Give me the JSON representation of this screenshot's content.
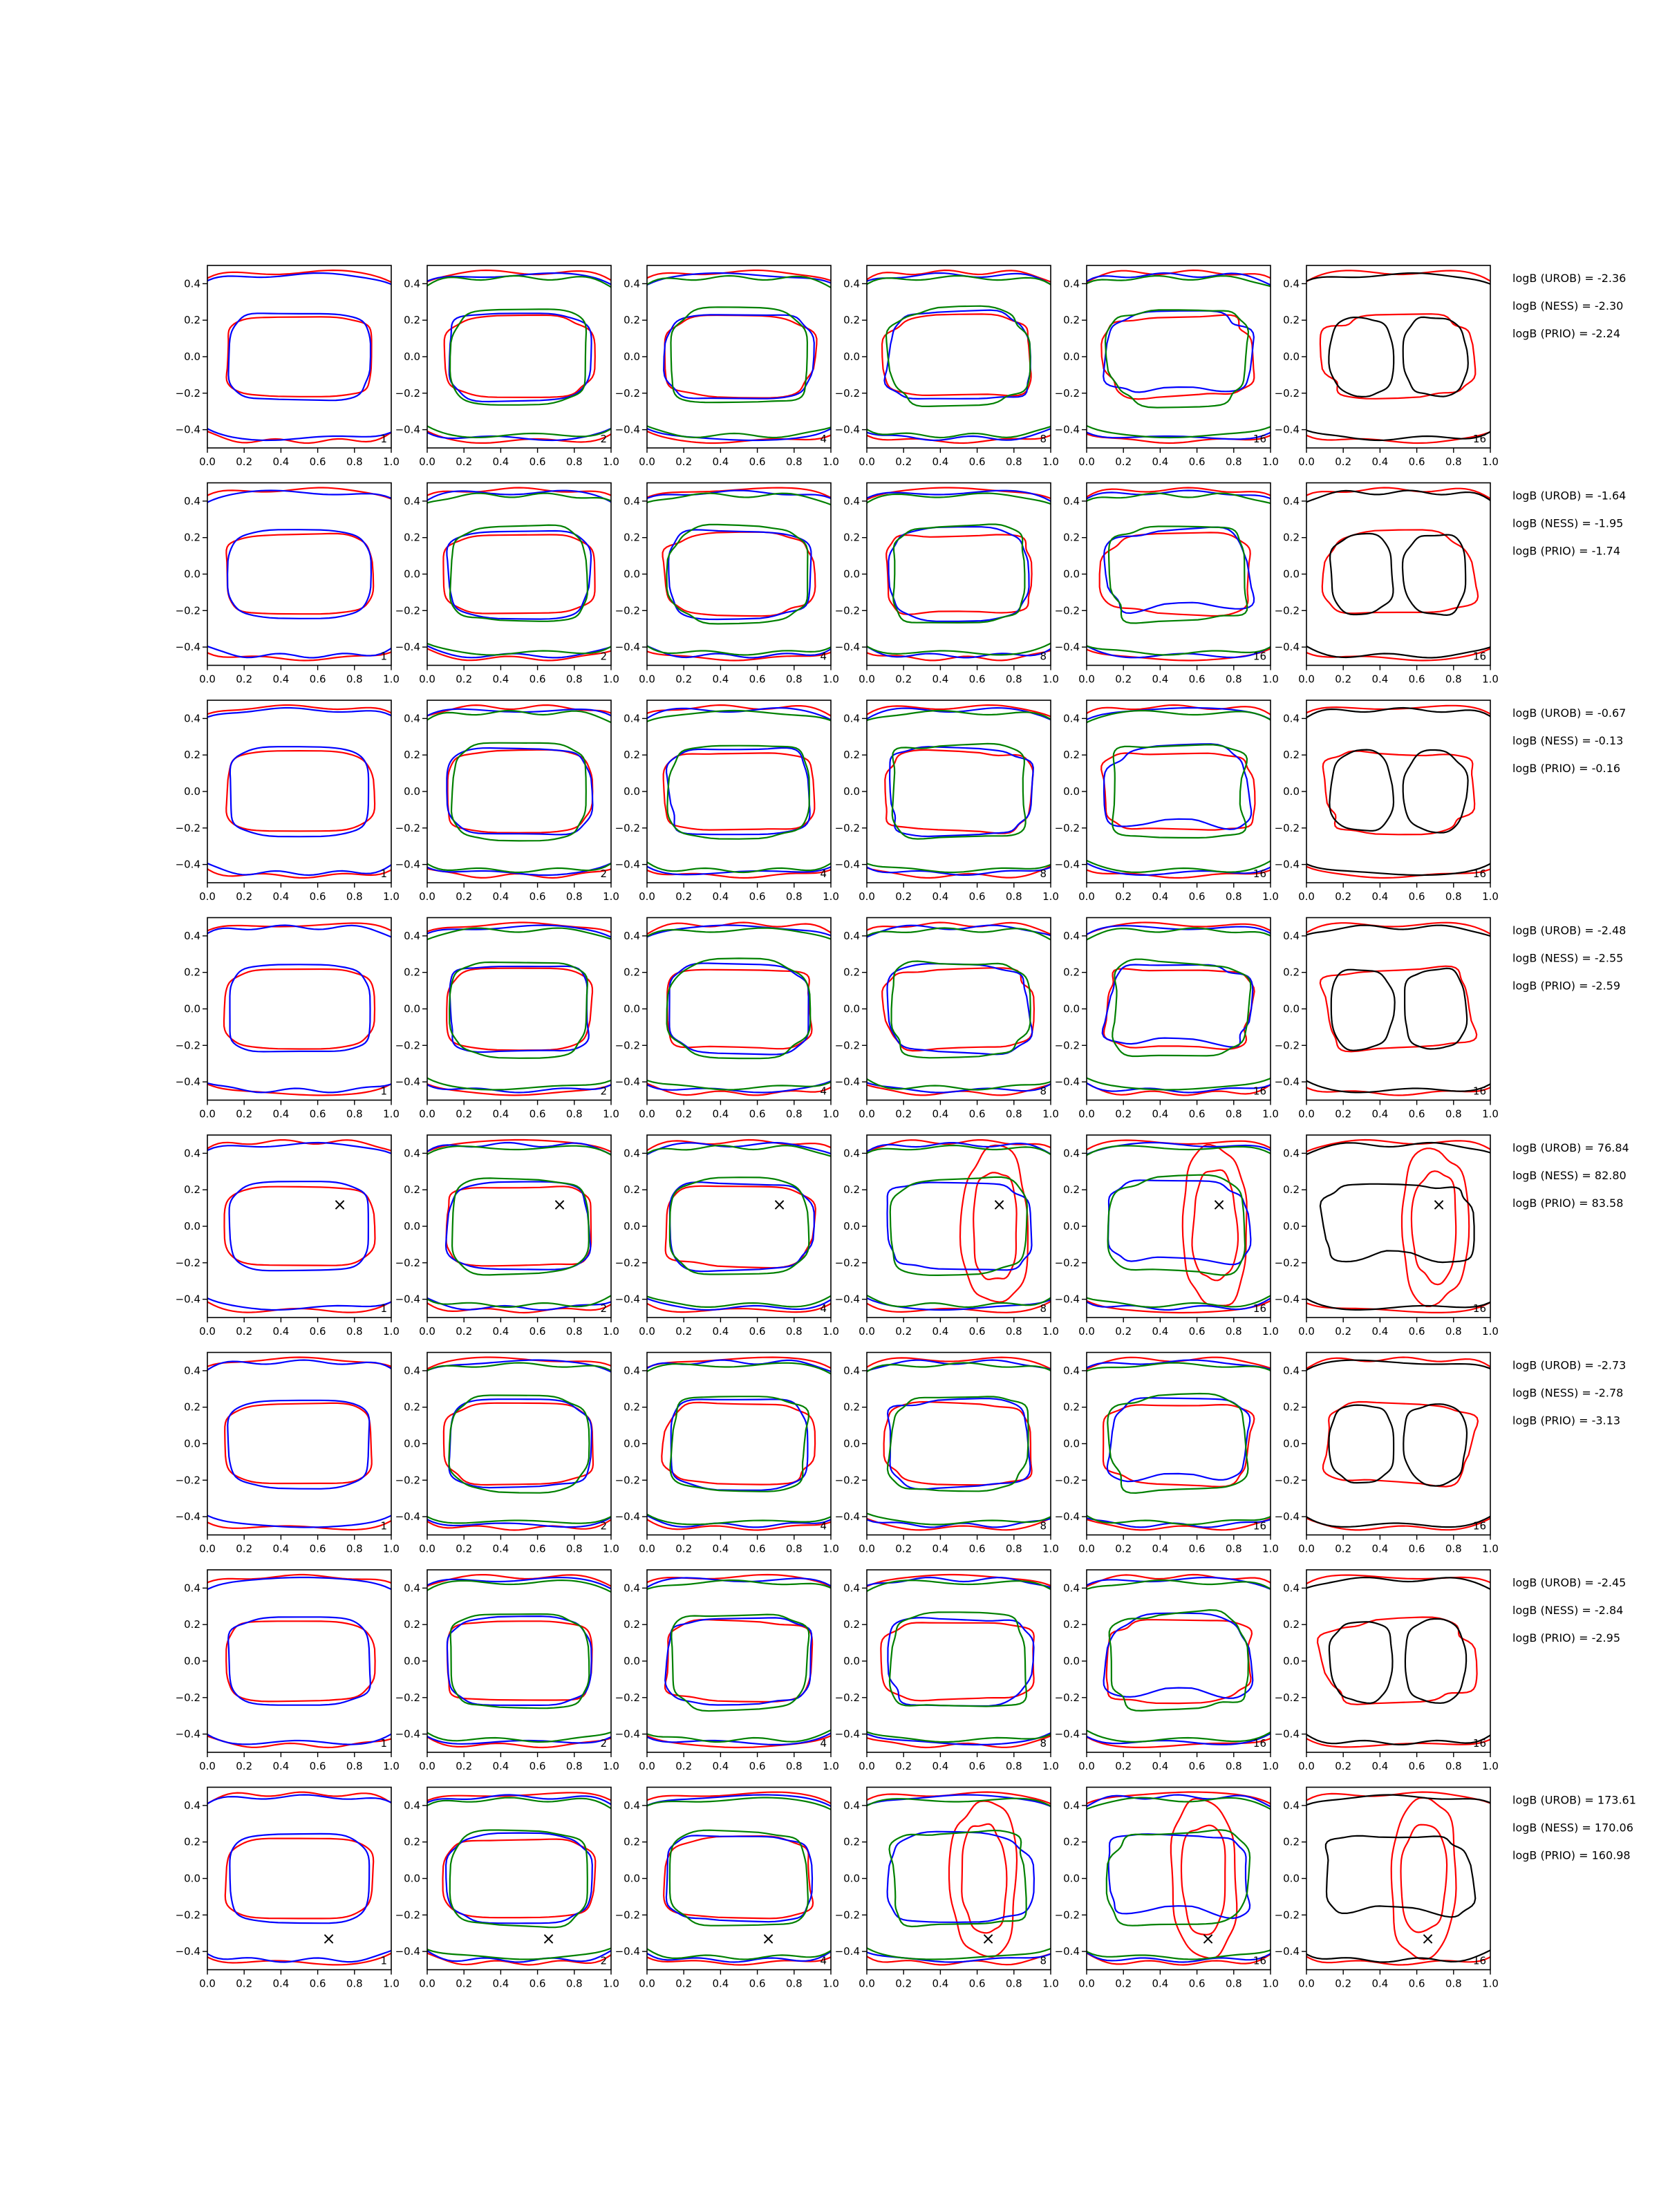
{
  "figure": {
    "layout": "8 rows x 6 columns of contour panels with log Bayes factor annotations per row",
    "axes": {
      "xlim": [
        0,
        1
      ],
      "ylim": [
        -0.5,
        0.5
      ],
      "xticks": [
        "0.0",
        "0.2",
        "0.4",
        "0.6",
        "0.8",
        "1.0"
      ],
      "yticks": [
        "0.4",
        "0.2",
        "0.0",
        "−0.2",
        "−0.4"
      ]
    },
    "panel_labels": [
      "1",
      "2",
      "4",
      "8",
      "16",
      "16"
    ],
    "colors": {
      "red": "#ff0000",
      "blue": "#0000ff",
      "green": "#008000",
      "black": "#000000",
      "axes": "#000000"
    },
    "rows": [
      {
        "annotations": [
          "logB (UROB) = -2.36",
          "logB (NESS) = -2.30",
          "logB (PRIO) = -2.24"
        ],
        "marker": null
      },
      {
        "annotations": [
          "logB (UROB) = -1.64",
          "logB (NESS) = -1.95",
          "logB (PRIO) = -1.74"
        ],
        "marker": null
      },
      {
        "annotations": [
          "logB (UROB) = -0.67",
          "logB (NESS) = -0.13",
          "logB (PRIO) = -0.16"
        ],
        "marker": null
      },
      {
        "annotations": [
          "logB (UROB) = -2.48",
          "logB (NESS) = -2.55",
          "logB (PRIO) = -2.59"
        ],
        "marker": null
      },
      {
        "annotations": [
          "logB (UROB) = 76.84",
          "logB (NESS) = 82.80",
          "logB (PRIO) = 83.58"
        ],
        "marker": [
          0.72,
          0.12
        ]
      },
      {
        "annotations": [
          "logB (UROB) = -2.73",
          "logB (NESS) = -2.78",
          "logB (PRIO) = -3.13"
        ],
        "marker": null
      },
      {
        "annotations": [
          "logB (UROB) = -2.45",
          "logB (NESS) = -2.84",
          "logB (PRIO) = -2.95"
        ],
        "marker": null
      },
      {
        "annotations": [
          "logB (UROB) = 173.61",
          "logB (NESS) = 170.06",
          "logB (PRIO) = 160.98"
        ],
        "marker": [
          0.66,
          -0.33
        ]
      }
    ]
  },
  "chart_data": {
    "type": "contour",
    "panels_per_row": 6,
    "num_rows": 8,
    "x_range": [
      0,
      1
    ],
    "y_range": [
      -0.5,
      0.5
    ],
    "series_colors": [
      "red",
      "blue",
      "green",
      "black"
    ],
    "markers": [
      {
        "row": 5,
        "x": 0.72,
        "y": 0.12,
        "symbol": "×"
      },
      {
        "row": 8,
        "x": 0.66,
        "y": -0.33,
        "symbol": "×"
      }
    ],
    "log_bayes_factors": [
      {
        "row": 1,
        "UROB": -2.36,
        "NESS": -2.3,
        "PRIO": -2.24
      },
      {
        "row": 2,
        "UROB": -1.64,
        "NESS": -1.95,
        "PRIO": -1.74
      },
      {
        "row": 3,
        "UROB": -0.67,
        "NESS": -0.13,
        "PRIO": -0.16
      },
      {
        "row": 4,
        "UROB": -2.48,
        "NESS": -2.55,
        "PRIO": -2.59
      },
      {
        "row": 5,
        "UROB": 76.84,
        "NESS": 82.8,
        "PRIO": 83.58
      },
      {
        "row": 6,
        "UROB": -2.73,
        "NESS": -2.78,
        "PRIO": -3.13
      },
      {
        "row": 7,
        "UROB": -2.45,
        "NESS": -2.84,
        "PRIO": -2.95
      },
      {
        "row": 8,
        "UROB": 173.61,
        "NESS": 170.06,
        "PRIO": 160.98
      }
    ]
  }
}
